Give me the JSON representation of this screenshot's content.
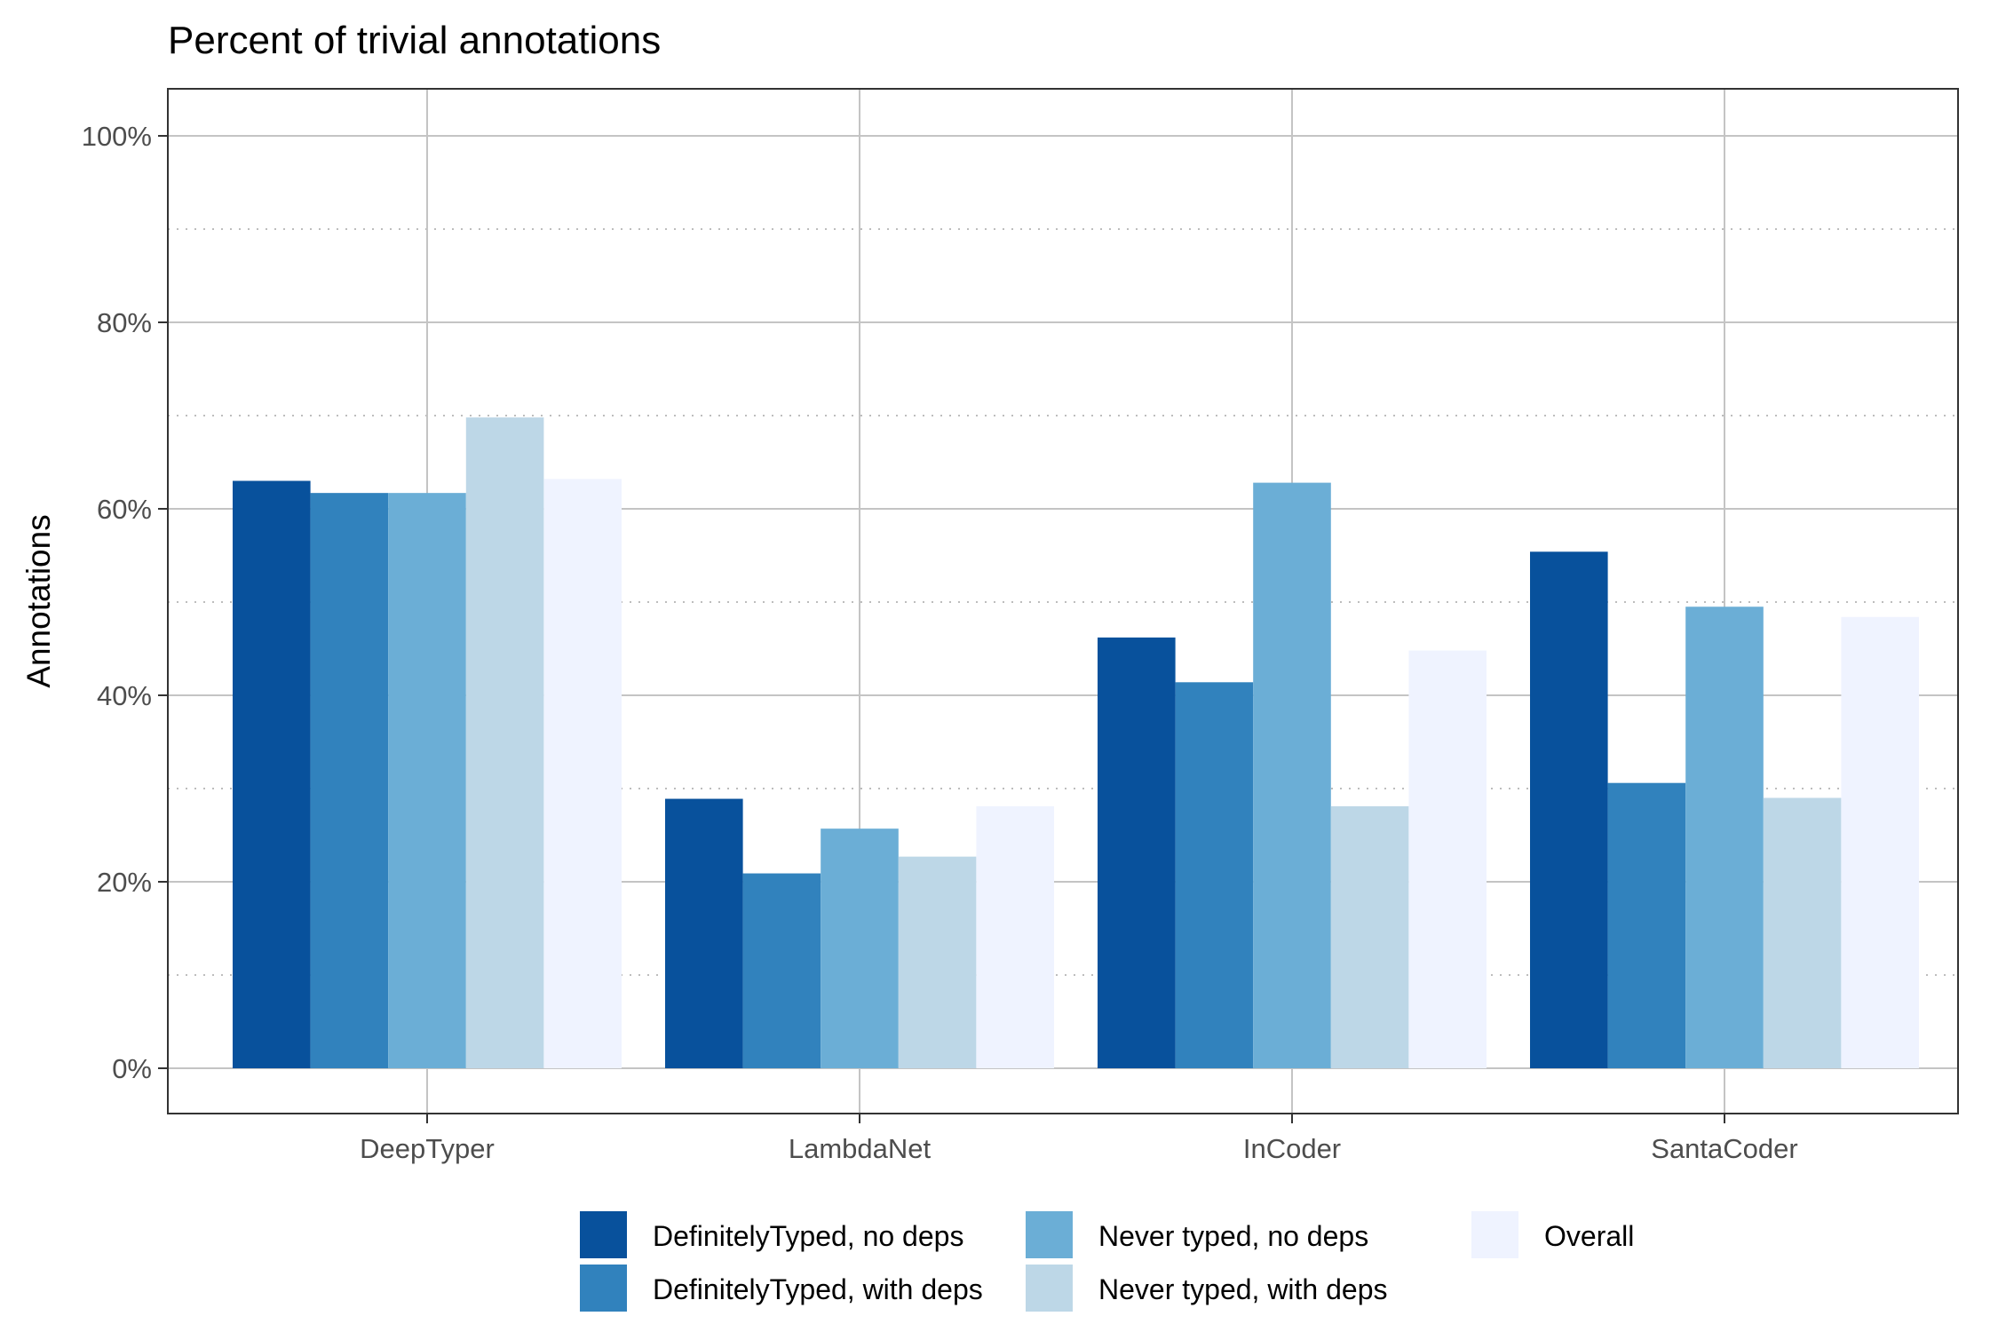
{
  "chart_data": {
    "type": "bar",
    "title": "Percent of trivial annotations",
    "xlabel": "",
    "ylabel": "Annotations",
    "ylim": [
      0,
      1.05
    ],
    "y_ticks": [
      0,
      0.2,
      0.4,
      0.6,
      0.8,
      1.0
    ],
    "y_tick_labels": [
      "0%",
      "20%",
      "40%",
      "60%",
      "80%",
      "100%"
    ],
    "y_minor_ticks": [
      0.1,
      0.3,
      0.5,
      0.7,
      0.9
    ],
    "grid": true,
    "legend_position": "bottom",
    "categories": [
      "DeepTyper",
      "LambdaNet",
      "InCoder",
      "SantaCoder"
    ],
    "series": [
      {
        "name": "DefinitelyTyped, no deps",
        "color": "#08519c",
        "values": [
          0.63,
          0.289,
          0.462,
          0.554
        ]
      },
      {
        "name": "DefinitelyTyped, with deps",
        "color": "#3182bd",
        "values": [
          0.617,
          0.209,
          0.414,
          0.306
        ]
      },
      {
        "name": "Never typed, no deps",
        "color": "#6baed6",
        "values": [
          0.617,
          0.257,
          0.628,
          0.495
        ]
      },
      {
        "name": "Never typed, with deps",
        "color": "#bdd7e7",
        "values": [
          0.698,
          0.227,
          0.281,
          0.29
        ]
      },
      {
        "name": "Overall",
        "color": "#eff3ff",
        "values": [
          0.632,
          0.281,
          0.448,
          0.484
        ]
      }
    ]
  }
}
